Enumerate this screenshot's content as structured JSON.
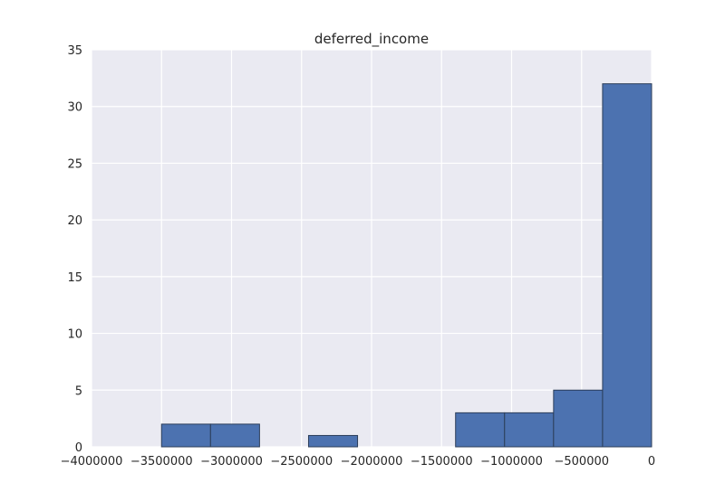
{
  "chart_data": {
    "type": "bar",
    "title": "deferred_income",
    "xlabel": "",
    "ylabel": "",
    "xlim": [
      -4000000,
      0
    ],
    "ylim": [
      0,
      35
    ],
    "grid": true,
    "style": {
      "background_color": "#eaeaf2",
      "grid_color": "#ffffff",
      "bar_color": "#4c72b0",
      "bar_edge_color": "#2c3e5a"
    },
    "x_ticks": [
      -4000000,
      -3500000,
      -3000000,
      -2500000,
      -2000000,
      -1500000,
      -1000000,
      -500000,
      0
    ],
    "x_tick_labels": [
      "−4000000",
      "−3500000",
      "−3000000",
      "−2500000",
      "−2000000",
      "−1500000",
      "−1000000",
      "−500000",
      "0"
    ],
    "y_ticks": [
      0,
      5,
      10,
      15,
      20,
      25,
      30,
      35
    ],
    "y_tick_labels": [
      "0",
      "5",
      "10",
      "15",
      "20",
      "25",
      "30",
      "35"
    ],
    "bins": [
      {
        "x0": -3500000,
        "x1": -3150000,
        "count": 2
      },
      {
        "x0": -3150000,
        "x1": -2800000,
        "count": 2
      },
      {
        "x0": -2800000,
        "x1": -2450000,
        "count": 0
      },
      {
        "x0": -2450000,
        "x1": -2100000,
        "count": 1
      },
      {
        "x0": -2100000,
        "x1": -1750000,
        "count": 0
      },
      {
        "x0": -1750000,
        "x1": -1400000,
        "count": 0
      },
      {
        "x0": -1400000,
        "x1": -1050000,
        "count": 3
      },
      {
        "x0": -1050000,
        "x1": -700000,
        "count": 3
      },
      {
        "x0": -700000,
        "x1": -350000,
        "count": 5
      },
      {
        "x0": -350000,
        "x1": 0,
        "count": 32
      }
    ]
  }
}
